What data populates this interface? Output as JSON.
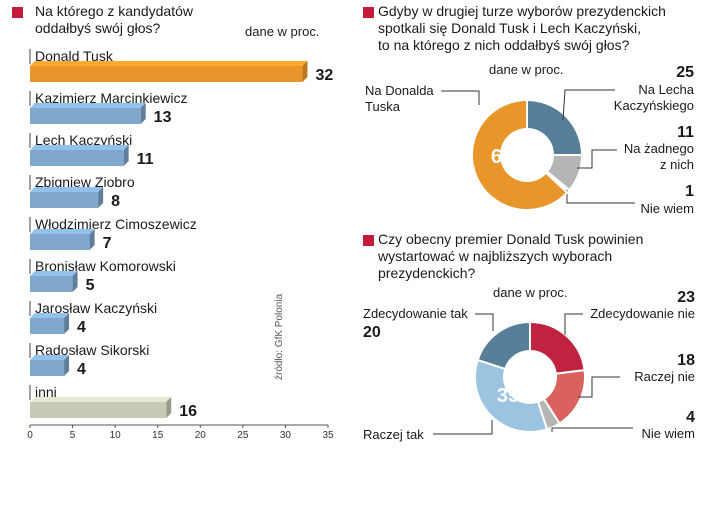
{
  "colors": {
    "accent": "#c51a3a",
    "bar_top": "#ff7f0e",
    "bar_front": "#e8962a",
    "bar_blue": "#7fa8cc",
    "bar_blue_dark": "#5b87b0",
    "bar_gray": "#c9c9b8",
    "slate": "#587f99",
    "light_gray": "#b5b5b5",
    "orange": "#e8962a",
    "crimson": "#c0233f",
    "salmon": "#d9625f",
    "light_blue": "#9cc3e0"
  },
  "bar_chart": {
    "question": "Na którego z kandydatów\noddałbyś swój głos?",
    "unit_note": "dane w proc.",
    "source": "źródło: GfK Polonia"
  },
  "donut1": {
    "question": "Gdyby w drugiej turze wyborów prezydenckich\nspotkali się Donald Tusk i Lech Kaczyński,\nto na którego z nich oddałbyś swój głos?",
    "unit_note": "dane w proc."
  },
  "donut2": {
    "question": "Czy obecny premier Donald Tusk powinien\nwystartować w najbliższych wyborach\nprezydenckich?",
    "unit_note": "dane w proc."
  },
  "chart_data": [
    {
      "type": "bar",
      "orientation": "horizontal",
      "title": "Na którego z kandydatów oddałbyś swój głos?",
      "categories": [
        "Donald Tusk",
        "Kazimierz Marcinkiewicz",
        "Lech Kaczyński",
        "Zbigniew Ziobro",
        "Włodzimierz Cimoszewicz",
        "Bronisław Komorowski",
        "Jarosław Kaczyński",
        "Radosław Sikorski",
        "inni"
      ],
      "values": [
        32,
        13,
        11,
        8,
        7,
        5,
        4,
        4,
        16
      ],
      "highlight": [
        true,
        false,
        false,
        false,
        false,
        false,
        false,
        false,
        false
      ],
      "xlim": [
        0,
        35
      ],
      "xticks": [
        "0",
        "5",
        "10",
        "15",
        "20",
        "25",
        "30",
        "35"
      ],
      "grid": false
    },
    {
      "type": "pie",
      "donut": true,
      "title": "Gdyby w drugiej turze wyborów prezydenckich spotkali się Donald Tusk i Lech Kaczyński, to na którego z nich oddałbyś swój głos?",
      "slices": [
        {
          "label": "Na Lecha Kaczyńskiego",
          "value": 25,
          "value_label": "25",
          "color": "#587f99",
          "inside": false
        },
        {
          "label": "Na żadnego z nich",
          "value": 11,
          "value_label": "11",
          "color": "#b5b5b5",
          "inside": false
        },
        {
          "label": "Nie wiem",
          "value": 1,
          "value_label": "1",
          "color": "#ffffff",
          "inside": false
        },
        {
          "label": "Na Donalda Tuska",
          "value": 63,
          "value_label": "63",
          "color": "#e8962a",
          "inside": true
        }
      ]
    },
    {
      "type": "pie",
      "donut": true,
      "title": "Czy obecny premier Donald Tusk powinien wystartować w najbliższych wyborach prezydenckich?",
      "slices": [
        {
          "label": "Zdecydowanie nie",
          "value": 23,
          "value_label": "23",
          "color": "#c0233f",
          "inside": false
        },
        {
          "label": "Raczej nie",
          "value": 18,
          "value_label": "18",
          "color": "#d9625f",
          "inside": false
        },
        {
          "label": "Nie wiem",
          "value": 4,
          "value_label": "4",
          "color": "#b5b5b5",
          "inside": false
        },
        {
          "label": "Raczej tak",
          "value": 35,
          "value_label": "35",
          "color": "#9cc3e0",
          "inside": true
        },
        {
          "label": "Zdecydowanie tak",
          "value": 20,
          "value_label": "20",
          "color": "#587f99",
          "inside": false
        }
      ]
    }
  ]
}
